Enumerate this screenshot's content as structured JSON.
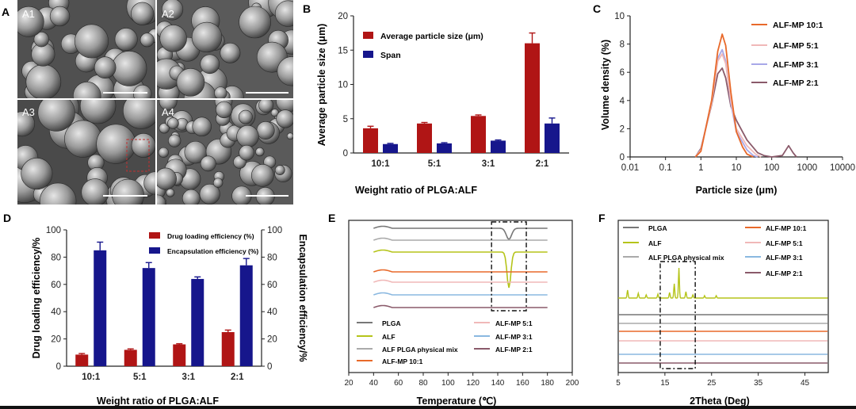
{
  "panel_labels": {
    "A": "A",
    "B": "B",
    "C": "C",
    "D": "D",
    "E": "E",
    "F": "F"
  },
  "sem_labels": [
    "A1",
    "A2",
    "A3",
    "A4"
  ],
  "colors": {
    "red": "#b01515",
    "blue": "#16168c",
    "axis": "#222222"
  },
  "chart_data": [
    {
      "id": "B",
      "type": "bar",
      "ylabel": "Average particle size (μm)",
      "xlabel": "Weight ratio of PLGA:ALF",
      "categories": [
        "10:1",
        "5:1",
        "3:1",
        "2:1"
      ],
      "ylim": [
        0,
        20
      ],
      "yticks": [
        "0",
        "5",
        "10",
        "15",
        "20"
      ],
      "series": [
        {
          "name": "Average particle size (μm)",
          "color": "#b01515",
          "values": [
            3.6,
            4.3,
            5.4,
            16.0
          ],
          "errors": [
            0.3,
            0.15,
            0.15,
            1.5
          ]
        },
        {
          "name": "Span",
          "color": "#16168c",
          "values": [
            1.3,
            1.4,
            1.8,
            4.3
          ],
          "errors": [
            0.1,
            0.1,
            0.1,
            0.8
          ]
        }
      ]
    },
    {
      "id": "C",
      "type": "line",
      "xscale": "log",
      "xlabel": "Particle size (μm)",
      "ylabel": "Volume density (%)",
      "xticks": [
        "0.01",
        "0.1",
        "1",
        "10",
        "100",
        "1000",
        "10000"
      ],
      "yticks": [
        "0",
        "2",
        "4",
        "6",
        "8",
        "10"
      ],
      "ylim": [
        0,
        10
      ],
      "series": [
        {
          "name": "ALF-MP 10:1",
          "color": "#e8692a",
          "points": [
            [
              0.7,
              0
            ],
            [
              1,
              0.4
            ],
            [
              2,
              4.0
            ],
            [
              3,
              7.5
            ],
            [
              4,
              8.7
            ],
            [
              5,
              7.9
            ],
            [
              7,
              4.6
            ],
            [
              10,
              1.8
            ],
            [
              15,
              0.7
            ],
            [
              20,
              0.2
            ],
            [
              30,
              0
            ]
          ]
        },
        {
          "name": "ALF-MP 5:1",
          "color": "#f0b8b8",
          "points": [
            [
              0.7,
              0
            ],
            [
              1,
              0.5
            ],
            [
              2,
              3.8
            ],
            [
              3,
              6.8
            ],
            [
              4,
              7.3
            ],
            [
              5,
              6.6
            ],
            [
              7,
              4.0
            ],
            [
              10,
              2.0
            ],
            [
              20,
              0.8
            ],
            [
              35,
              0.2
            ],
            [
              50,
              0
            ]
          ]
        },
        {
          "name": "ALF-MP 3:1",
          "color": "#a8a8e8",
          "points": [
            [
              0.7,
              0
            ],
            [
              1,
              0.5
            ],
            [
              2,
              3.9
            ],
            [
              3,
              7.0
            ],
            [
              4,
              7.6
            ],
            [
              5,
              6.8
            ],
            [
              7,
              3.8
            ],
            [
              10,
              1.8
            ],
            [
              20,
              0.5
            ],
            [
              30,
              0.1
            ],
            [
              40,
              0
            ]
          ]
        },
        {
          "name": "ALF-MP 2:1",
          "color": "#8a5a6a",
          "points": [
            [
              0.7,
              0
            ],
            [
              1,
              0.6
            ],
            [
              2,
              3.7
            ],
            [
              3,
              5.9
            ],
            [
              4,
              6.3
            ],
            [
              5,
              5.6
            ],
            [
              7,
              3.6
            ],
            [
              10,
              2.6
            ],
            [
              20,
              1.2
            ],
            [
              40,
              0.3
            ],
            [
              60,
              0.1
            ],
            [
              100,
              0
            ],
            [
              200,
              0.1
            ],
            [
              300,
              0.8
            ],
            [
              400,
              0.3
            ],
            [
              500,
              0
            ]
          ]
        }
      ]
    },
    {
      "id": "D",
      "type": "bar",
      "ylabel": "Drug loading efficiency/%",
      "y2label": "Encapsulation efficiency/%",
      "xlabel": "Weight ratio of PLGA:ALF",
      "categories": [
        "10:1",
        "5:1",
        "3:1",
        "2:1"
      ],
      "ylim": [
        0,
        100
      ],
      "yticks": [
        "0",
        "20",
        "40",
        "60",
        "80",
        "100"
      ],
      "series": [
        {
          "name": "Drug loading efficiency (%)",
          "color": "#b01515",
          "values": [
            8.5,
            12,
            16,
            25
          ],
          "errors": [
            0.8,
            0.7,
            0.5,
            1.5
          ]
        },
        {
          "name": "Encapsulation efficiency (%)",
          "color": "#16168c",
          "values": [
            85,
            72,
            64,
            74
          ],
          "errors": [
            6,
            4,
            1.5,
            5
          ]
        }
      ]
    },
    {
      "id": "E",
      "type": "line",
      "xlabel": "Temperature (℃)",
      "xticks": [
        "20",
        "40",
        "60",
        "80",
        "100",
        "120",
        "140",
        "160",
        "180",
        "200"
      ],
      "xlim": [
        20,
        200
      ],
      "series": [
        {
          "name": "PLGA",
          "color": "#777777"
        },
        {
          "name": "ALF",
          "color": "#b5c41a"
        },
        {
          "name": "ALF PLGA physical mix",
          "color": "#aaaaaa"
        },
        {
          "name": "ALF-MP 10:1",
          "color": "#e8692a"
        },
        {
          "name": "ALF-MP 5:1",
          "color": "#f0b8b8"
        },
        {
          "name": "ALF-MP 3:1",
          "color": "#8ab8e0"
        },
        {
          "name": "ALF-MP 2:1",
          "color": "#8a5a6a"
        }
      ]
    },
    {
      "id": "F",
      "type": "line",
      "xlabel": "2Theta (Deg)",
      "xticks": [
        "5",
        "15",
        "25",
        "35",
        "45"
      ],
      "xlim": [
        5,
        50
      ],
      "series": [
        {
          "name": "PLGA",
          "color": "#777777"
        },
        {
          "name": "ALF",
          "color": "#b5c41a"
        },
        {
          "name": "ALF PLGA physical mix",
          "color": "#aaaaaa"
        },
        {
          "name": "ALF-MP 10:1",
          "color": "#e8692a"
        },
        {
          "name": "ALF-MP 5:1",
          "color": "#f0b8b8"
        },
        {
          "name": "ALF-MP 3:1",
          "color": "#8ab8e0"
        },
        {
          "name": "ALF-MP 2:1",
          "color": "#8a5a6a"
        }
      ]
    }
  ]
}
